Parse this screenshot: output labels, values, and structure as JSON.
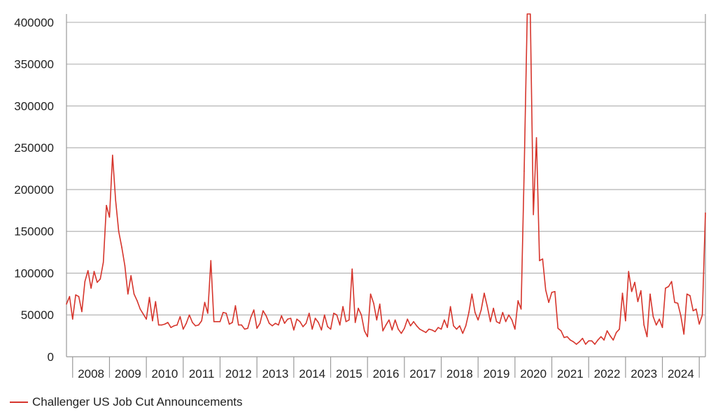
{
  "chart_data": {
    "type": "line",
    "title": "",
    "xlabel": "",
    "ylabel": "",
    "ylim": [
      0,
      410000
    ],
    "yticks": [
      0,
      50000,
      100000,
      150000,
      200000,
      250000,
      300000,
      350000,
      400000
    ],
    "ytick_labels": [
      "0",
      "50000",
      "100000",
      "150000",
      "200000",
      "250000",
      "300000",
      "350000",
      "400000"
    ],
    "x_start": "2007-11",
    "x_end": "2025-03",
    "x_tick_labels": [
      "2008",
      "2009",
      "2010",
      "2011",
      "2012",
      "2013",
      "2014",
      "2015",
      "2016",
      "2017",
      "2018",
      "2019",
      "2020",
      "2021",
      "2022",
      "2023",
      "2024"
    ],
    "grid": "horizontal",
    "legend": "bottom-left",
    "series": [
      {
        "name": "Challenger US Job Cut Announcements",
        "color": "#d6352c",
        "start": "2007-11",
        "values": [
          63000,
          72000,
          45000,
          74000,
          72000,
          54000,
          90000,
          103000,
          82000,
          102000,
          89000,
          93000,
          113000,
          181000,
          167000,
          241000,
          187000,
          150000,
          131000,
          109000,
          75000,
          97000,
          75000,
          67000,
          57000,
          51000,
          45000,
          71000,
          43000,
          66000,
          38000,
          38000,
          39000,
          41000,
          35000,
          37000,
          38000,
          48000,
          33000,
          40000,
          50000,
          41000,
          37000,
          38000,
          43000,
          65000,
          52000,
          115000,
          42000,
          42000,
          42000,
          53000,
          52000,
          39000,
          41000,
          61000,
          38000,
          38000,
          33000,
          34000,
          47000,
          56000,
          34000,
          40000,
          55000,
          49000,
          40000,
          37000,
          40000,
          38000,
          49000,
          40000,
          45000,
          46000,
          32000,
          45000,
          42000,
          36000,
          40000,
          52000,
          33000,
          46000,
          41000,
          32000,
          50000,
          36000,
          33000,
          52000,
          50000,
          38000,
          60000,
          42000,
          44000,
          105000,
          41000,
          58000,
          50000,
          31000,
          24000,
          75000,
          64000,
          44000,
          63000,
          31000,
          38000,
          44000,
          32000,
          44000,
          33000,
          28000,
          34000,
          45000,
          37000,
          42000,
          37000,
          33000,
          31000,
          29000,
          33000,
          32000,
          30000,
          35000,
          33000,
          44000,
          35000,
          60000,
          37000,
          33000,
          37000,
          28000,
          37000,
          53000,
          75000,
          53000,
          44000,
          56000,
          76000,
          60000,
          42000,
          58000,
          42000,
          40000,
          53000,
          42000,
          50000,
          44000,
          33000,
          67000,
          57000,
          222000,
          410000,
          410000,
          170000,
          262000,
          115000,
          117000,
          80000,
          65000,
          77000,
          78000,
          34000,
          31000,
          23000,
          24000,
          20000,
          18000,
          15000,
          18000,
          22000,
          15000,
          19000,
          19000,
          15000,
          20000,
          24000,
          20000,
          31000,
          25000,
          20000,
          29000,
          33000,
          76000,
          43000,
          102000,
          78000,
          89000,
          66000,
          79000,
          38000,
          24000,
          75000,
          48000,
          38000,
          45000,
          35000,
          82000,
          84000,
          90000,
          65000,
          64000,
          49000,
          27000,
          75000,
          73000,
          55000,
          57000,
          39000,
          50000,
          172000
        ]
      }
    ]
  }
}
